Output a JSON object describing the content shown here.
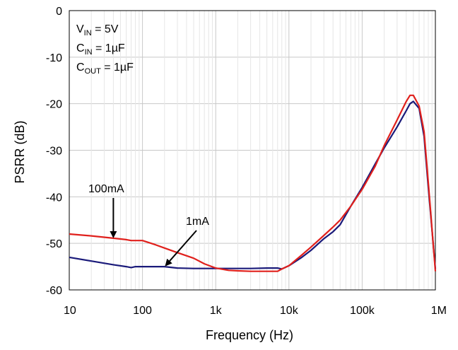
{
  "chart_data": {
    "type": "line",
    "xlabel": "Frequency (Hz)",
    "ylabel": "PSRR (dB)",
    "xscale": "log",
    "xlim": [
      10,
      1000000
    ],
    "ylim": [
      -60,
      0
    ],
    "x_ticks": [
      {
        "value": 10,
        "label": "10"
      },
      {
        "value": 100,
        "label": "100"
      },
      {
        "value": 1000,
        "label": "1k"
      },
      {
        "value": 10000,
        "label": "10k"
      },
      {
        "value": 100000,
        "label": "100k"
      },
      {
        "value": 1000000,
        "label": "1M"
      }
    ],
    "y_ticks": [
      0,
      -10,
      -20,
      -30,
      -40,
      -50,
      -60
    ],
    "grid": true,
    "conditions": [
      {
        "main": "V",
        "sub": "IN",
        "rest": " = 5V"
      },
      {
        "main": "C",
        "sub": "IN",
        "rest": " = 1µF"
      },
      {
        "main": "C",
        "sub": "OUT",
        "rest": " = 1µF"
      }
    ],
    "series": [
      {
        "name": "1mA",
        "color": "#1a1a7a",
        "x": [
          10,
          20,
          40,
          60,
          70,
          80,
          100,
          200,
          300,
          500,
          1000,
          2000,
          3000,
          5000,
          7000,
          8000,
          10000,
          15000,
          20000,
          30000,
          40000,
          50000,
          70000,
          100000,
          150000,
          200000,
          300000,
          400000,
          450000,
          500000,
          600000,
          700000,
          800000,
          1000000
        ],
        "values": [
          -53,
          -53.8,
          -54.6,
          -55,
          -55.2,
          -55,
          -55,
          -55,
          -55.3,
          -55.4,
          -55.4,
          -55.4,
          -55.4,
          -55.3,
          -55.3,
          -55.5,
          -54.8,
          -53,
          -51.5,
          -49,
          -47.5,
          -46,
          -42,
          -38,
          -33,
          -29.5,
          -25,
          -21.5,
          -20,
          -19.5,
          -21,
          -27,
          -38,
          -55.5
        ]
      },
      {
        "name": "100mA",
        "color": "#e0201c",
        "x": [
          10,
          20,
          40,
          60,
          70,
          100,
          150,
          200,
          300,
          500,
          700,
          1000,
          1500,
          2000,
          3000,
          5000,
          7000,
          8000,
          10000,
          15000,
          20000,
          30000,
          40000,
          50000,
          70000,
          100000,
          150000,
          200000,
          300000,
          400000,
          450000,
          500000,
          600000,
          700000,
          800000,
          1000000
        ],
        "values": [
          -48,
          -48.4,
          -48.9,
          -49.2,
          -49.4,
          -49.4,
          -50.3,
          -51,
          -52,
          -53.2,
          -54.4,
          -55.3,
          -55.8,
          -55.9,
          -56,
          -56,
          -56,
          -55.5,
          -54.8,
          -52.5,
          -50.8,
          -48.3,
          -46.5,
          -45,
          -42,
          -38.4,
          -33.5,
          -29,
          -23.5,
          -19.5,
          -18.2,
          -18.2,
          -20.5,
          -26,
          -37,
          -56
        ]
      }
    ],
    "annotations": [
      {
        "text": "100mA",
        "series": "100mA"
      },
      {
        "text": "1mA",
        "series": "1mA"
      }
    ]
  }
}
